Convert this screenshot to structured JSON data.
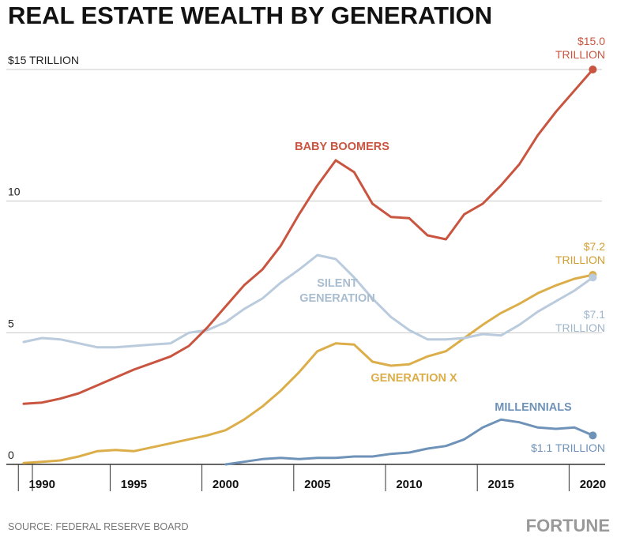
{
  "title": "REAL ESTATE WEALTH BY GENERATION",
  "source": "SOURCE: FEDERAL RESERVE BOARD",
  "brand": "FORTUNE",
  "colors": {
    "baby_boomers": "#c9543f",
    "silent_generation": "#b9cbdc",
    "generation_x": "#dcae4a",
    "millennials": "#6f92b9",
    "grid": "#c8c8c8",
    "axis": "#333333"
  },
  "chart_data": {
    "type": "line",
    "title": "REAL ESTATE WEALTH BY GENERATION",
    "xlabel": "",
    "ylabel": "",
    "units": "trillions of dollars",
    "xlim": [
      1989,
      2020.5
    ],
    "ylim": [
      0,
      15
    ],
    "grid": "horizontal",
    "x_ticks": [
      1990,
      1995,
      2000,
      2005,
      2010,
      2015,
      2020
    ],
    "x_tick_labels": [
      "1990",
      "1995",
      "2000",
      "2005",
      "2010",
      "2015",
      "2020"
    ],
    "y_ticks": [
      0,
      5,
      10,
      15
    ],
    "y_tick_labels": [
      "0",
      "5",
      "10",
      "$15 TRILLION"
    ],
    "series": [
      {
        "key": "baby_boomers",
        "name": "BABY BOOMERS",
        "end_label": [
          "$15.0",
          "TRILLION"
        ],
        "x": [
          1989,
          1990,
          1991,
          1992,
          1993,
          1994,
          1995,
          1996,
          1997,
          1998,
          1999,
          2000,
          2001,
          2002,
          2003,
          2004,
          2005,
          2006,
          2007,
          2008,
          2009,
          2010,
          2011,
          2012,
          2013,
          2014,
          2015,
          2016,
          2017,
          2018,
          2019,
          2020
        ],
        "y": [
          2.3,
          2.35,
          2.5,
          2.7,
          3.0,
          3.3,
          3.6,
          3.85,
          4.1,
          4.5,
          5.2,
          6.0,
          6.8,
          7.4,
          8.3,
          9.5,
          10.6,
          11.55,
          11.1,
          9.9,
          9.4,
          9.35,
          8.7,
          8.55,
          9.5,
          9.9,
          10.6,
          11.4,
          12.5,
          13.4,
          14.2,
          15.0
        ]
      },
      {
        "key": "silent_generation",
        "name": "SILENT GENERATION",
        "end_label": [
          "$7.1",
          "TRILLION"
        ],
        "x": [
          1989,
          1990,
          1991,
          1992,
          1993,
          1994,
          1995,
          1996,
          1997,
          1998,
          1999,
          2000,
          2001,
          2002,
          2003,
          2004,
          2005,
          2006,
          2007,
          2008,
          2009,
          2010,
          2011,
          2012,
          2013,
          2014,
          2015,
          2016,
          2017,
          2018,
          2019,
          2020
        ],
        "y": [
          4.65,
          4.8,
          4.75,
          4.6,
          4.45,
          4.45,
          4.5,
          4.55,
          4.6,
          5.0,
          5.1,
          5.4,
          5.9,
          6.3,
          6.9,
          7.4,
          7.95,
          7.8,
          7.1,
          6.3,
          5.6,
          5.1,
          4.75,
          4.75,
          4.8,
          4.95,
          4.9,
          5.3,
          5.8,
          6.2,
          6.6,
          7.1
        ]
      },
      {
        "key": "generation_x",
        "name": "GENERATION X",
        "end_label": [
          "$7.2",
          "TRILLION"
        ],
        "x": [
          1989,
          1990,
          1991,
          1992,
          1993,
          1994,
          1995,
          1996,
          1997,
          1998,
          1999,
          2000,
          2001,
          2002,
          2003,
          2004,
          2005,
          2006,
          2007,
          2008,
          2009,
          2010,
          2011,
          2012,
          2013,
          2014,
          2015,
          2016,
          2017,
          2018,
          2019,
          2020
        ],
        "y": [
          0.05,
          0.1,
          0.15,
          0.3,
          0.5,
          0.55,
          0.5,
          0.65,
          0.8,
          0.95,
          1.1,
          1.3,
          1.7,
          2.2,
          2.8,
          3.5,
          4.3,
          4.6,
          4.55,
          3.9,
          3.75,
          3.8,
          4.1,
          4.3,
          4.8,
          5.3,
          5.75,
          6.1,
          6.5,
          6.8,
          7.05,
          7.2
        ]
      },
      {
        "key": "millennials",
        "name": "MILLENNIALS",
        "end_label": [
          "$1.1 TRILLION"
        ],
        "x": [
          2000,
          2001,
          2002,
          2003,
          2004,
          2005,
          2006,
          2007,
          2008,
          2009,
          2010,
          2011,
          2012,
          2013,
          2014,
          2015,
          2016,
          2017,
          2018,
          2019,
          2020
        ],
        "y": [
          0.0,
          0.1,
          0.2,
          0.25,
          0.2,
          0.25,
          0.25,
          0.3,
          0.3,
          0.4,
          0.45,
          0.6,
          0.7,
          0.95,
          1.4,
          1.7,
          1.6,
          1.4,
          1.35,
          1.4,
          1.1
        ]
      }
    ],
    "annotations": [
      {
        "text": "BABY BOOMERS",
        "series": "baby_boomers"
      },
      {
        "text": "SILENT",
        "series": "silent_generation"
      },
      {
        "text": "GENERATION",
        "series": "silent_generation"
      },
      {
        "text": "GENERATION X",
        "series": "generation_x"
      },
      {
        "text": "MILLENNIALS",
        "series": "millennials"
      }
    ]
  }
}
